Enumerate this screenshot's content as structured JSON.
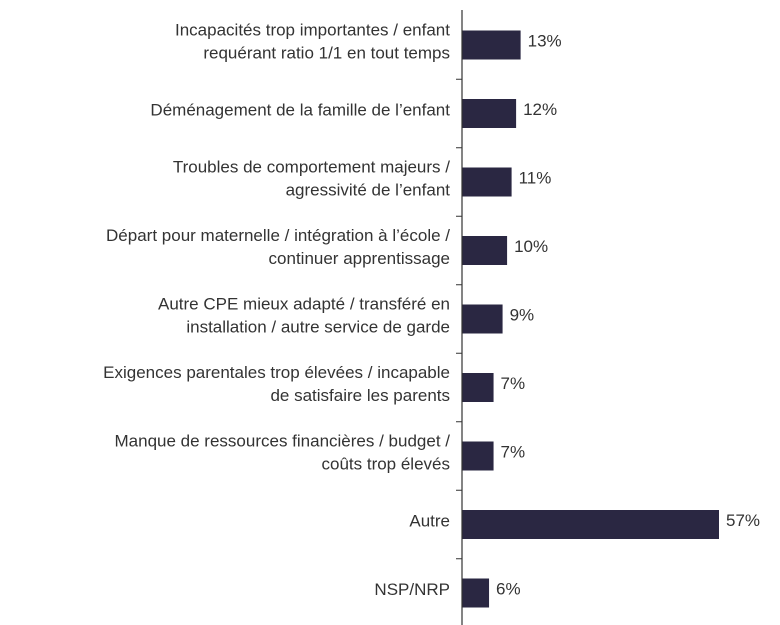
{
  "chart_data": {
    "type": "bar",
    "orientation": "horizontal",
    "categories": [
      "Incapacités trop importantes / enfant\nrequérant ratio 1/1 en tout temps",
      "Déménagement de la famille de l’enfant",
      "Troubles de comportement majeurs /\nagressivité de l’enfant",
      "Départ pour maternelle / intégration à l’école /\ncontinuer apprentissage",
      "Autre CPE mieux adapté / transféré en\ninstallation / autre service de garde",
      "Exigences parentales trop élevées / incapable\nde satisfaire les parents",
      "Manque de ressources financières / budget /\ncoûts trop élevés",
      "Autre",
      "NSP/NRP"
    ],
    "values": [
      13,
      12,
      11,
      10,
      9,
      7,
      7,
      57,
      6
    ],
    "value_labels": [
      "13%",
      "12%",
      "11%",
      "10%",
      "9%",
      "7%",
      "7%",
      "57%",
      "6%"
    ],
    "color": "#2a2742"
  }
}
